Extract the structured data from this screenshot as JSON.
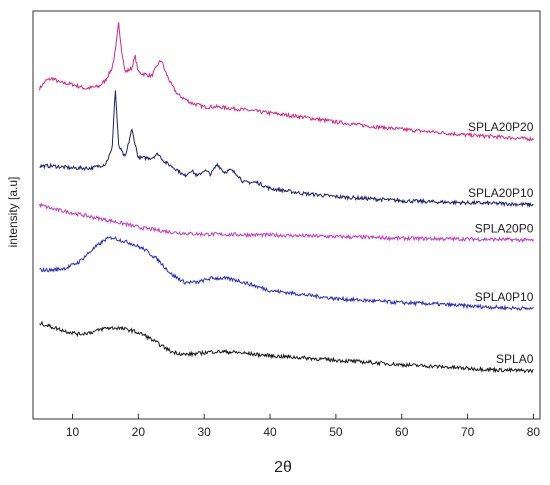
{
  "chart_data": {
    "type": "line",
    "xlabel": "2θ",
    "ylabel": "intensity [a.u]",
    "xlim": [
      4,
      81
    ],
    "ylim": [
      0,
      100
    ],
    "x_ticks": [
      10,
      20,
      30,
      40,
      50,
      60,
      70,
      80
    ],
    "y_ticks_shown": false,
    "grid": false,
    "series": [
      {
        "name": "SPLA20P20",
        "color": "#d6287f",
        "x": [
          5,
          6,
          7,
          8,
          10,
          12,
          14,
          15,
          16,
          16.5,
          17,
          17.5,
          18,
          19,
          19.5,
          20,
          21,
          22,
          23,
          23.5,
          24,
          25,
          26,
          28,
          30,
          32,
          35,
          40,
          45,
          50,
          55,
          60,
          65,
          70,
          75,
          80
        ],
        "y": [
          81,
          83,
          83.5,
          82.5,
          82,
          81,
          81.5,
          83,
          86,
          90,
          97,
          90,
          85,
          86,
          89,
          85,
          84.5,
          84,
          87,
          88,
          85.5,
          82,
          79.5,
          77.5,
          76.5,
          76.5,
          76,
          75,
          74,
          72.8,
          71.8,
          71,
          70.3,
          69.6,
          69.1,
          68.6
        ]
      },
      {
        "name": "SPLA20P10",
        "color": "#1f1f6e",
        "x": [
          5,
          7,
          10,
          13,
          15,
          16,
          16.5,
          17,
          18,
          19,
          20,
          21,
          22,
          23,
          24,
          26,
          27,
          28,
          29,
          30,
          31,
          32,
          33,
          34,
          35,
          36,
          38,
          40,
          45,
          50,
          55,
          60,
          65,
          70,
          75,
          80
        ],
        "y": [
          62,
          62,
          61.5,
          61.5,
          62.5,
          66,
          81,
          67,
          64,
          71,
          64,
          64,
          64,
          65,
          63,
          61,
          59.5,
          61,
          59.5,
          61,
          60,
          62.5,
          60.5,
          61,
          60,
          58,
          58,
          56.5,
          55.3,
          54.5,
          54,
          53.5,
          53.2,
          53,
          52.8,
          52.5
        ]
      },
      {
        "name": "SPLA20P0",
        "color": "#c33cc4",
        "x": [
          5,
          7,
          10,
          13,
          16,
          18,
          20,
          22,
          25,
          28,
          30,
          35,
          40,
          45,
          50,
          55,
          60,
          65,
          70,
          75,
          80
        ],
        "y": [
          52.5,
          51.5,
          50.5,
          49.5,
          48.5,
          47.8,
          47,
          46.5,
          45.8,
          45.4,
          45.3,
          45.2,
          45.1,
          44.9,
          44.7,
          44.5,
          44.3,
          44.2,
          44.1,
          44,
          43.8
        ]
      },
      {
        "name": "SPLA0P10",
        "color": "#2a2ac0",
        "x": [
          5,
          7,
          9,
          11,
          13,
          15,
          16,
          17,
          19,
          21,
          23,
          25,
          27,
          29,
          31,
          33,
          35,
          38,
          40,
          45,
          50,
          55,
          60,
          65,
          70,
          75,
          80
        ],
        "y": [
          36.5,
          36.5,
          37,
          38.5,
          41.5,
          44,
          44.5,
          44,
          43,
          41.5,
          39,
          35.5,
          33.5,
          33.5,
          34.5,
          34.5,
          34,
          32.5,
          31.5,
          30.5,
          29.5,
          29,
          28.5,
          28.2,
          27.7,
          27.3,
          27
        ]
      },
      {
        "name": "SPLA0",
        "color": "#1a1a1a",
        "x": [
          5,
          7,
          9,
          11,
          13,
          15,
          17,
          19,
          21,
          23,
          25,
          27,
          29,
          31,
          33,
          35,
          38,
          40,
          45,
          50,
          55,
          60,
          65,
          70,
          75,
          80
        ],
        "y": [
          23.5,
          22.5,
          21.5,
          20.8,
          21.3,
          22.3,
          22.3,
          21.7,
          20.5,
          18.5,
          16.5,
          15.8,
          16,
          16.5,
          16.5,
          16.3,
          15.8,
          15.5,
          15,
          14.4,
          13.9,
          13.3,
          12.9,
          12.4,
          12,
          11.8
        ]
      }
    ]
  }
}
